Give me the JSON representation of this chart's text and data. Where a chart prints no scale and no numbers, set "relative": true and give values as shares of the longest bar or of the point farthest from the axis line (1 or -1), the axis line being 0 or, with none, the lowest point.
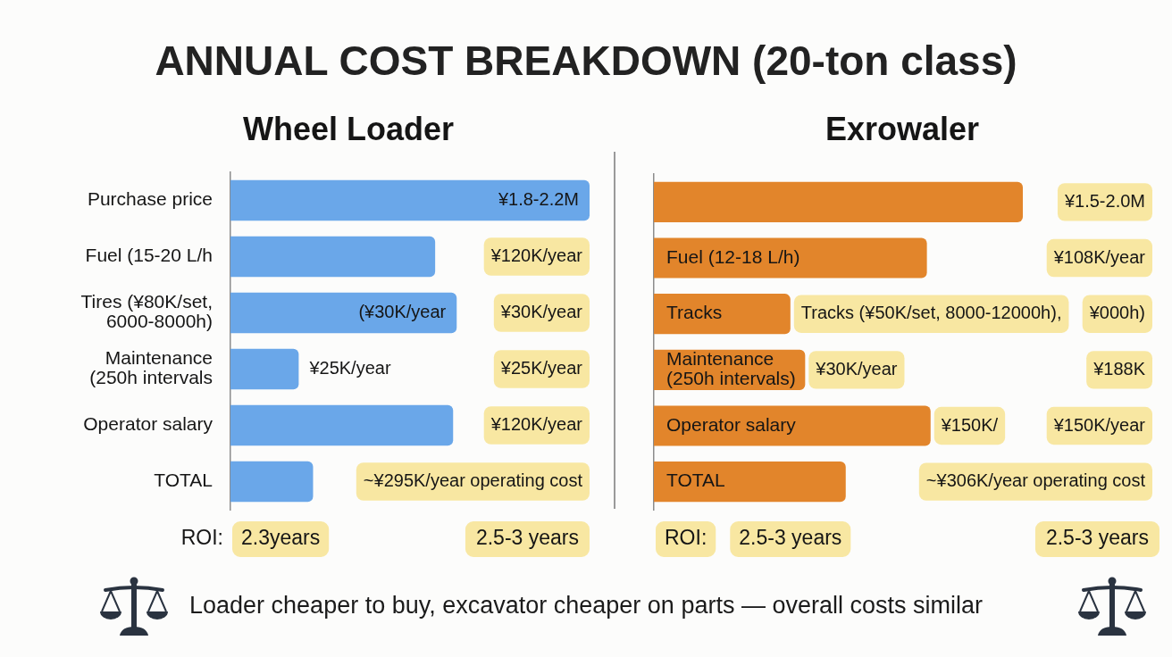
{
  "chart_data": [
    {
      "type": "other",
      "title": "ANNUAL COST BREAKDOWN (20-ton class)"
    },
    {
      "type": "bar",
      "orientation": "horizontal",
      "relative": true,
      "title": "Wheel Loader",
      "categories": [
        "Purchase price",
        "Fuel (15-20 L/h",
        "Tires (¥80K/set, 6000-8000h)",
        "Maintenance (250h intervals",
        "Operator salary",
        "TOTAL"
      ],
      "values": [
        1,
        0.57,
        0.63,
        0.19,
        0.62,
        0.23
      ],
      "color": "#6aa7e9",
      "annotations": [
        "¥1.8-2.2M",
        "¥120K/year",
        "(¥30K/year",
        "¥30K/year",
        "¥25K/year",
        "¥25K/year",
        "¥120K/year",
        "~¥295K/year operating cost",
        "ROI:",
        "2.3years",
        "2.5-3 years"
      ]
    },
    {
      "type": "bar",
      "orientation": "horizontal",
      "relative": true,
      "title": "Exrowaler",
      "categories": [
        null,
        "Fuel (12-18 L/h)",
        "Tracks",
        "Maintenance (250h intervals)",
        "Operator salary",
        "TOTAL"
      ],
      "values": [
        1,
        0.74,
        0.37,
        0.41,
        0.75,
        0.52
      ],
      "color": "#e2852b",
      "annotations": [
        "¥1.5-2.0M",
        "¥108K/year",
        "Tracks (¥50K/set, 8000-12000h),",
        "¥000h)",
        "¥30K/year",
        "¥188K",
        "¥150K/",
        "¥150K/year",
        "~¥306K/year operating cost",
        "ROI:",
        "2.5-3 years",
        "2.5-3 years"
      ]
    },
    {
      "type": "other",
      "annotations": [
        "Loader cheaper to buy, excavator cheaper on parts — overall costs similar"
      ]
    }
  ]
}
